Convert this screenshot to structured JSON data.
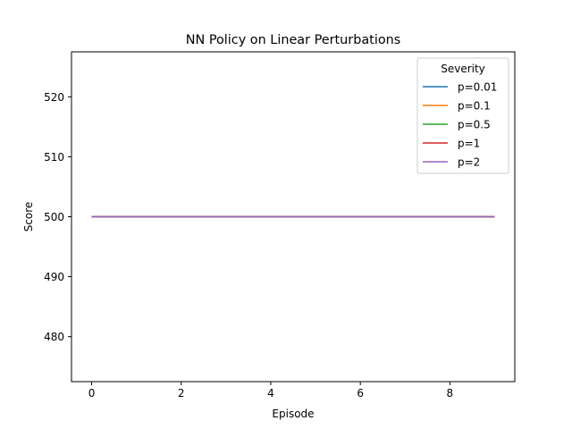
{
  "chart_data": {
    "type": "line",
    "title": "NN Policy on Linear Perturbations",
    "xlabel": "Episode",
    "ylabel": "Score",
    "xlim": [
      -0.45,
      9.45
    ],
    "ylim": [
      472.5,
      527.5
    ],
    "xticks": [
      0,
      2,
      4,
      6,
      8
    ],
    "yticks": [
      480,
      490,
      500,
      510,
      520
    ],
    "x": [
      0,
      1,
      2,
      3,
      4,
      5,
      6,
      7,
      8,
      9
    ],
    "legend": {
      "title": "Severity",
      "placement": "top-right"
    },
    "grid": false,
    "series": [
      {
        "name": "p=0.01",
        "color": "#1f77b4",
        "values": [
          500,
          500,
          500,
          500,
          500,
          500,
          500,
          500,
          500,
          500
        ]
      },
      {
        "name": "p=0.1",
        "color": "#ff7f0e",
        "values": [
          500,
          500,
          500,
          500,
          500,
          500,
          500,
          500,
          500,
          500
        ]
      },
      {
        "name": "p=0.5",
        "color": "#2ca02c",
        "values": [
          500,
          500,
          500,
          500,
          500,
          500,
          500,
          500,
          500,
          500
        ]
      },
      {
        "name": "p=1",
        "color": "#d62728",
        "values": [
          500,
          500,
          500,
          500,
          500,
          500,
          500,
          500,
          500,
          500
        ]
      },
      {
        "name": "p=2",
        "color": "#9467bd",
        "values": [
          500,
          500,
          500,
          500,
          500,
          500,
          500,
          500,
          500,
          500
        ]
      }
    ]
  }
}
